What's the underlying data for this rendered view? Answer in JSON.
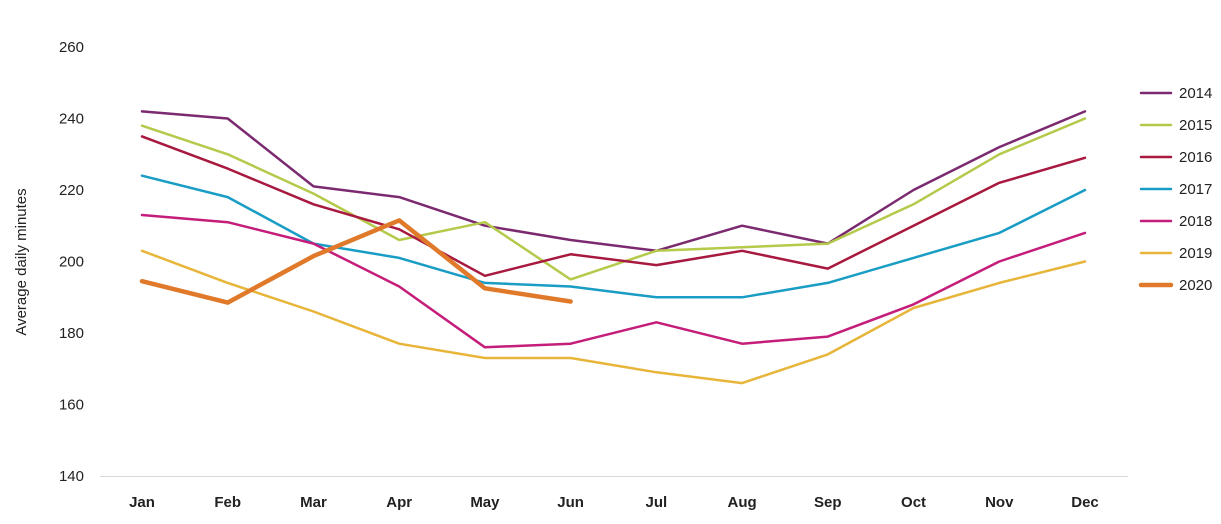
{
  "chart_data": {
    "type": "line",
    "title": "",
    "xlabel": "",
    "ylabel": "Average daily minutes",
    "ylim": [
      140,
      260
    ],
    "yticks": [
      140,
      160,
      180,
      200,
      220,
      240,
      260
    ],
    "grid": false,
    "legend_position": "right",
    "categories": [
      "Jan",
      "Feb",
      "Mar",
      "Apr",
      "May",
      "Jun",
      "Jul",
      "Aug",
      "Sep",
      "Oct",
      "Nov",
      "Dec"
    ],
    "series": [
      {
        "name": "2014",
        "color": "#7b2a6f",
        "values": [
          242,
          240,
          221,
          218,
          210,
          206,
          203,
          210,
          205,
          220,
          232,
          242
        ]
      },
      {
        "name": "2015",
        "color": "#b5c94b",
        "values": [
          238,
          230,
          219,
          206,
          211,
          195,
          203,
          204,
          205,
          216,
          230,
          240
        ]
      },
      {
        "name": "2016",
        "color": "#a8193f",
        "values": [
          235,
          226,
          216,
          209,
          196,
          202,
          199,
          203,
          198,
          210,
          222,
          229
        ]
      },
      {
        "name": "2017",
        "color": "#1a9dc4",
        "values": [
          224,
          218,
          205,
          201,
          194,
          193,
          190,
          190,
          194,
          201,
          208,
          220
        ]
      },
      {
        "name": "2018",
        "color": "#c41e7a",
        "values": [
          213,
          211,
          205,
          193,
          176,
          177,
          183,
          177,
          179,
          188,
          200,
          208
        ]
      },
      {
        "name": "2019",
        "color": "#e8b53b",
        "values": [
          203,
          194,
          186,
          177,
          173,
          173,
          169,
          166,
          174,
          187,
          194,
          200
        ]
      },
      {
        "name": "2020",
        "color": "#e07a2a",
        "bold": true,
        "values": [
          194.5,
          188.5,
          201.5,
          211.5,
          192.5,
          188.8,
          null,
          null,
          null,
          null,
          null,
          null
        ]
      }
    ]
  }
}
